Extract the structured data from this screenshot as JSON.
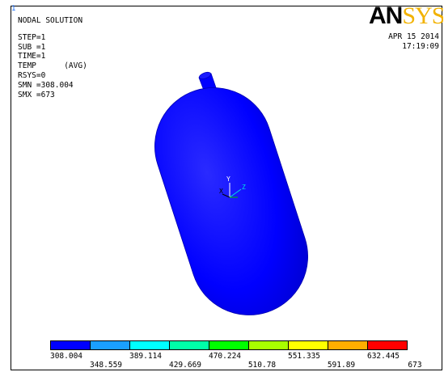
{
  "window_number": "1",
  "header": {
    "title": "NODAL SOLUTION",
    "lines": [
      "STEP=1",
      "SUB =1",
      "TIME=1",
      "TEMP      (AVG)",
      "RSYS=0",
      "SMN =308.004",
      "SMX =673"
    ]
  },
  "logo": {
    "an": "AN",
    "sys": "SYS"
  },
  "datetime": {
    "date": "APR 15 2014",
    "time": "17:19:09"
  },
  "triad": {
    "x": "X",
    "y": "Y",
    "z": "Z"
  },
  "model_color": "#0000ff",
  "legend": {
    "colors": [
      "#0000ff",
      "#1a9fff",
      "#00ffff",
      "#00ffa8",
      "#00ff00",
      "#a8ff00",
      "#ffff00",
      "#ffae00",
      "#ff0000"
    ],
    "labels_top": [
      "308.004",
      "389.114",
      "470.224",
      "551.335",
      "632.445"
    ],
    "labels_bottom": [
      "348.559",
      "429.669",
      "510.78",
      "591.89",
      "673"
    ]
  }
}
